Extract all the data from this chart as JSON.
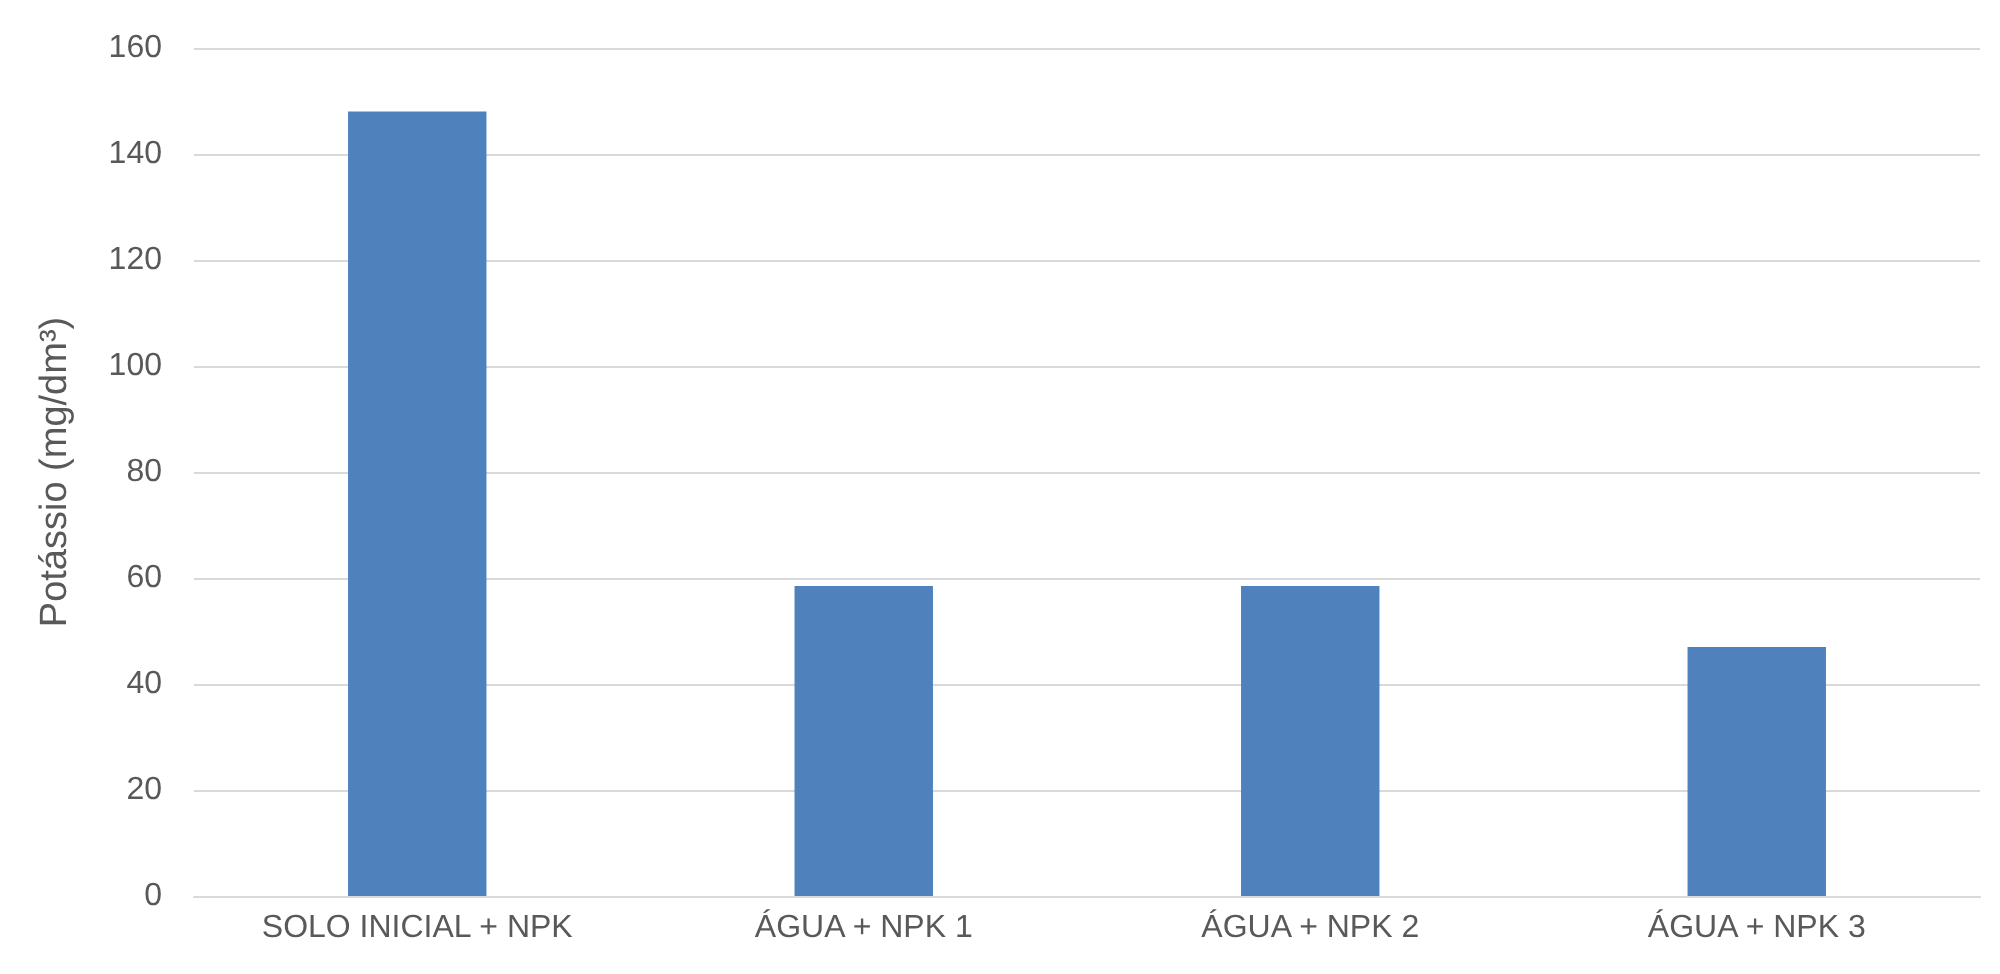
{
  "chart_data": {
    "type": "bar",
    "ylabel": "Potássio (mg/dm³)",
    "categories": [
      "SOLO INICIAL + NPK",
      "ÁGUA + NPK 1",
      "ÁGUA + NPK 2",
      "ÁGUA + NPK 3"
    ],
    "values": [
      148,
      58.5,
      58.5,
      47
    ],
    "color": "#4f81bd",
    "ylim": [
      0,
      160
    ],
    "yticks": [
      0,
      20,
      40,
      60,
      80,
      100,
      120,
      140,
      160
    ],
    "grid": "y"
  }
}
